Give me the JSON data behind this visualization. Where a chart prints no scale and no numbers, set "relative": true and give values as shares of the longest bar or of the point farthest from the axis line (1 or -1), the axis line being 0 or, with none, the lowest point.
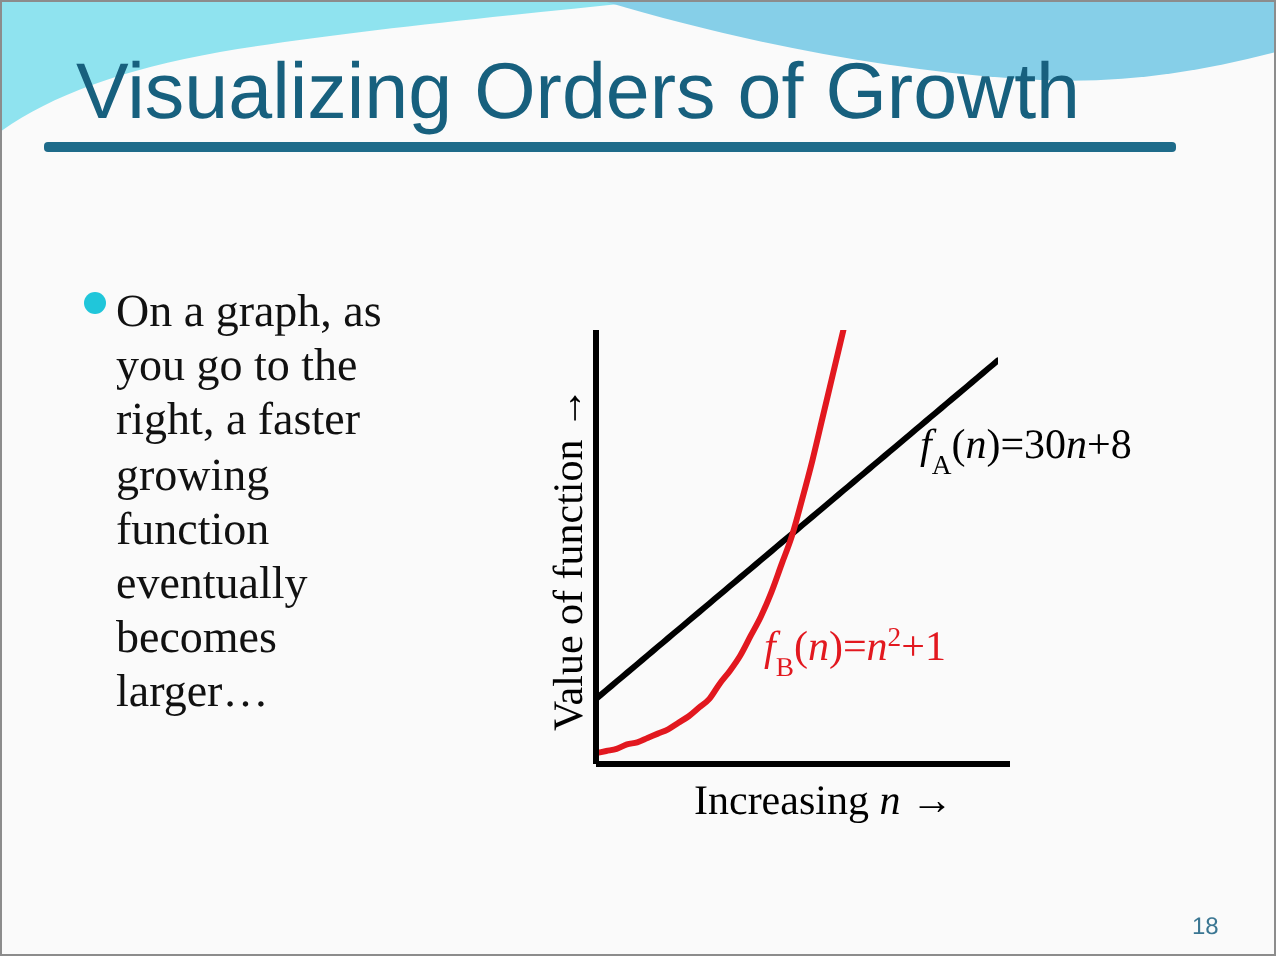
{
  "chart_data": {
    "type": "line",
    "title": "Visualizing Orders of Growth",
    "xlabel": "Increasing n →",
    "ylabel": "Value of function →",
    "annotations": [
      "On a graph, as you go to the right, a faster growing function eventually becomes larger…",
      "18"
    ],
    "relative": true,
    "categories": [
      null,
      null,
      null,
      null,
      null,
      null,
      null,
      null,
      null,
      null,
      null,
      null,
      null,
      null,
      null,
      null,
      null,
      null,
      null,
      null,
      null,
      null,
      null,
      null,
      null,
      null,
      null,
      null,
      null,
      null,
      null,
      null,
      null,
      null,
      null,
      null,
      null,
      null,
      null,
      null
    ],
    "series": [
      {
        "name": "f$_{A}$(n)=30n+8",
        "color": "#000000",
        "values": [
          0.15,
          0.17,
          0.19,
          0.21,
          0.23,
          0.25,
          0.27,
          0.29,
          0.31,
          0.33,
          0.35,
          0.37,
          0.39,
          0.41,
          0.43,
          0.45,
          0.47,
          0.49,
          0.51,
          0.53,
          0.55,
          0.57,
          0.59,
          0.61,
          0.63,
          0.65,
          0.67,
          0.69,
          0.71,
          0.73,
          0.75,
          0.77,
          0.79,
          0.81,
          0.83,
          0.85,
          0.87,
          0.89,
          0.91,
          0.93
        ]
      },
      {
        "name": "f$_{B}$(n)=n$^{2}$+1",
        "color": "#e2181f",
        "values": [
          0.025,
          0.03,
          0.035,
          0.045,
          0.05,
          0.06,
          0.07,
          0.08,
          0.095,
          0.11,
          0.13,
          0.15,
          0.185,
          0.215,
          0.25,
          0.295,
          0.34,
          0.395,
          0.46,
          0.525,
          0.61,
          0.7,
          0.8,
          0.9,
          1,
          null,
          null,
          null,
          null,
          null,
          null,
          null,
          null,
          null,
          null,
          null,
          null,
          null,
          null,
          null
        ]
      }
    ]
  }
}
